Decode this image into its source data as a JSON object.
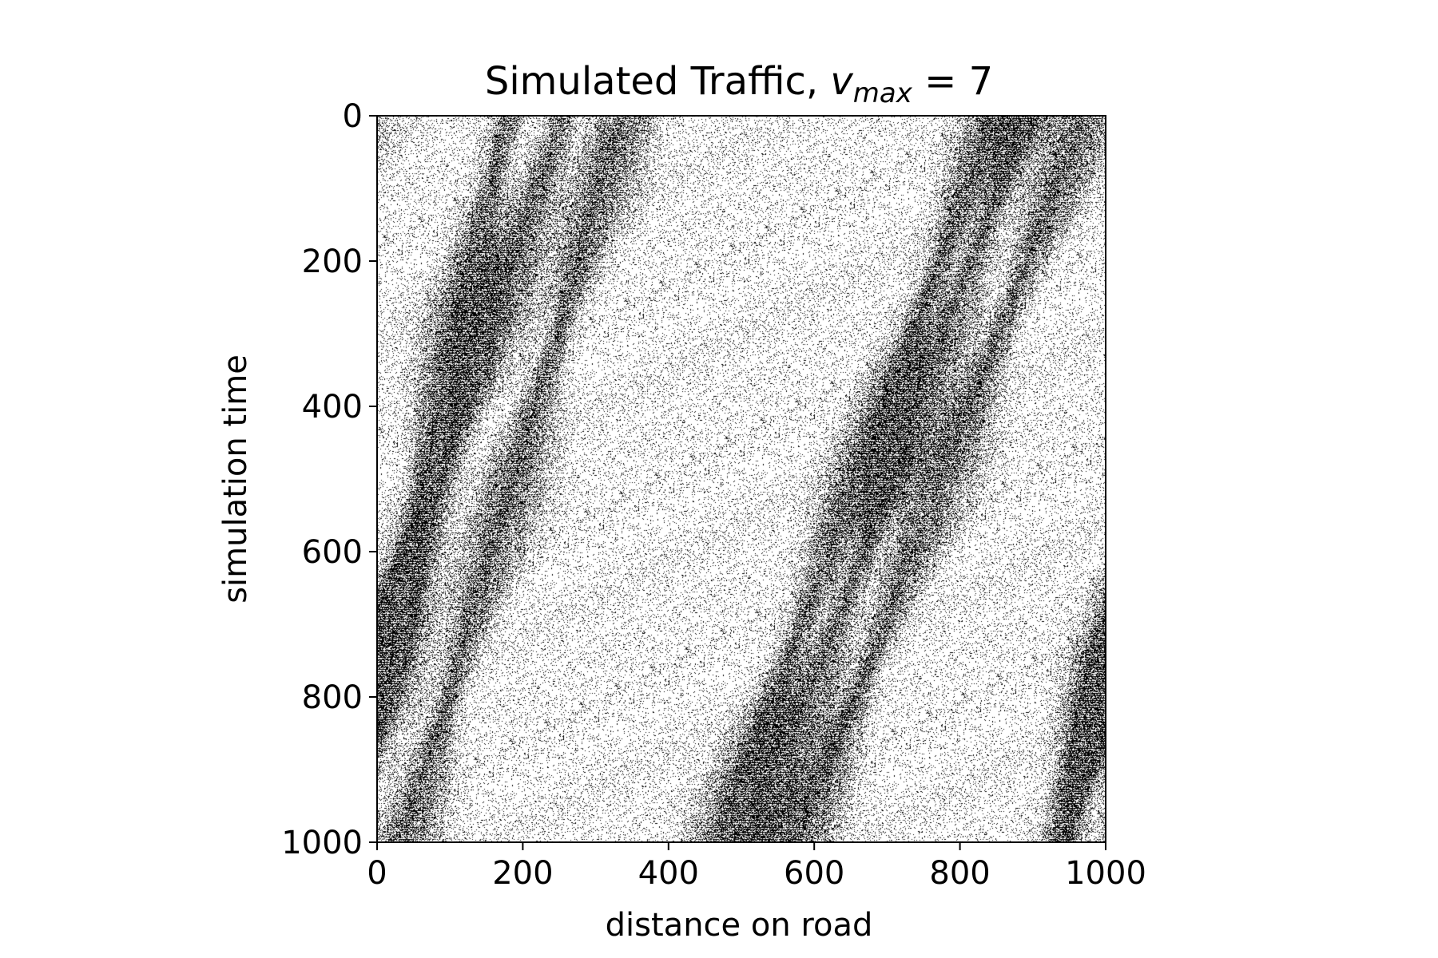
{
  "chart_data": {
    "type": "heatmap",
    "title_prefix": "Simulated Traffic, ",
    "title_var": "v",
    "title_sub": "max",
    "title_suffix": " = 7",
    "xlabel": "distance on road",
    "ylabel": "simulation time",
    "xlim": [
      0,
      1000
    ],
    "ylim": [
      0,
      1000
    ],
    "y_inverted": true,
    "x_ticks": [
      "0",
      "200",
      "400",
      "600",
      "800",
      "1000"
    ],
    "y_ticks": [
      "0",
      "200",
      "400",
      "600",
      "800",
      "1000"
    ],
    "vmax": 7,
    "road_length": 1000,
    "time_steps": 1000,
    "colormap": "gray_r",
    "grid": false,
    "jam_bands": [
      {
        "x_at_t0": 180,
        "x_at_t1000": -50
      },
      {
        "x_at_t0": 340,
        "x_at_t1000": 40
      },
      {
        "x_at_t0": 850,
        "x_at_t1000": 470
      },
      {
        "x_at_t0": 895,
        "x_at_t1000": 520
      },
      {
        "x_at_t0": 975,
        "x_at_t1000": 580
      },
      {
        "x_at_t0": 1255,
        "x_at_t1000": 930
      }
    ]
  },
  "colors": {
    "occupied": "#000000",
    "empty": "#ffffff",
    "axes": "#000000"
  }
}
